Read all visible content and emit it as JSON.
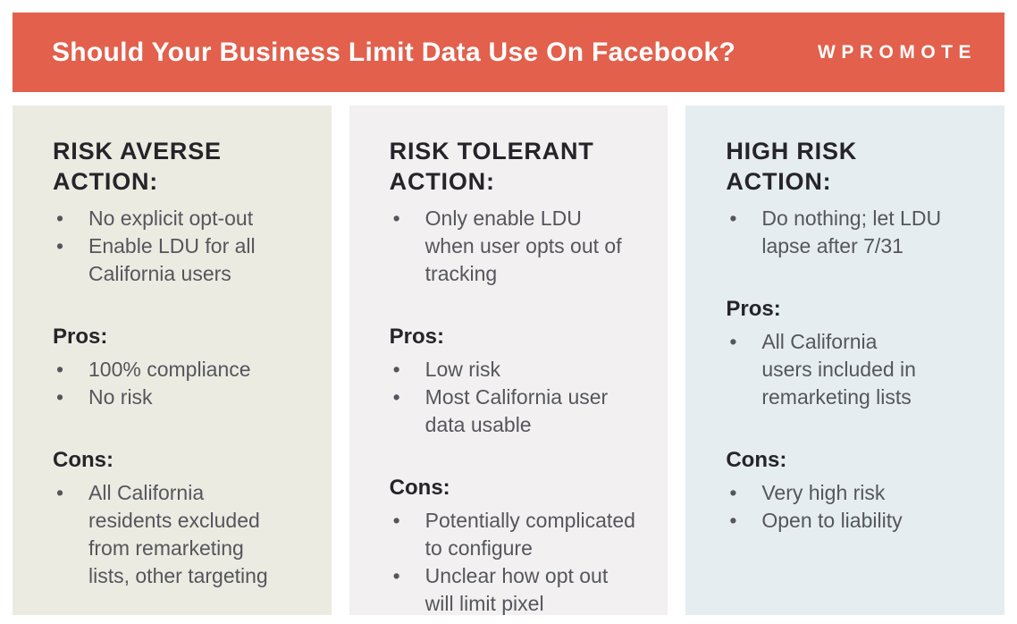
{
  "header": {
    "title": "Should Your Business Limit Data Use On Facebook?",
    "brand": "WPROMOTE"
  },
  "colors": {
    "header_background": "#E2604C",
    "header_text": "#FFFFFF",
    "heading_text": "#262429",
    "body_text": "#55565C",
    "page_background": "#FFFFFF",
    "column_backgrounds": [
      "#ECEBE2",
      "#F2F0F1",
      "#E5EDF0"
    ]
  },
  "columns": [
    {
      "heading": "RISK AVERSE\nACTION:",
      "action_items": [
        "No explicit opt-out",
        "Enable LDU for all\nCalifornia users"
      ],
      "pros_label": "Pros:",
      "pros_items": [
        "100% compliance",
        "No risk"
      ],
      "cons_label": "Cons:",
      "cons_items": [
        "All California\nresidents excluded\nfrom remarketing\nlists, other targeting"
      ]
    },
    {
      "heading": "RISK TOLERANT\nACTION:",
      "action_items": [
        "Only enable LDU\nwhen user opts out of\ntracking"
      ],
      "pros_label": "Pros:",
      "pros_items": [
        "Low risk",
        "Most California user\ndata usable"
      ],
      "cons_label": "Cons:",
      "cons_items": [
        "Potentially complicated\nto configure",
        "Unclear how opt out\nwill limit pixel"
      ]
    },
    {
      "heading": "HIGH RISK\nACTION:",
      "action_items": [
        "Do nothing; let LDU\nlapse after 7/31"
      ],
      "pros_label": "Pros:",
      "pros_items": [
        "All California\nusers included in\nremarketing lists"
      ],
      "cons_label": "Cons:",
      "cons_items": [
        "Very high risk",
        "Open to liability"
      ]
    }
  ]
}
